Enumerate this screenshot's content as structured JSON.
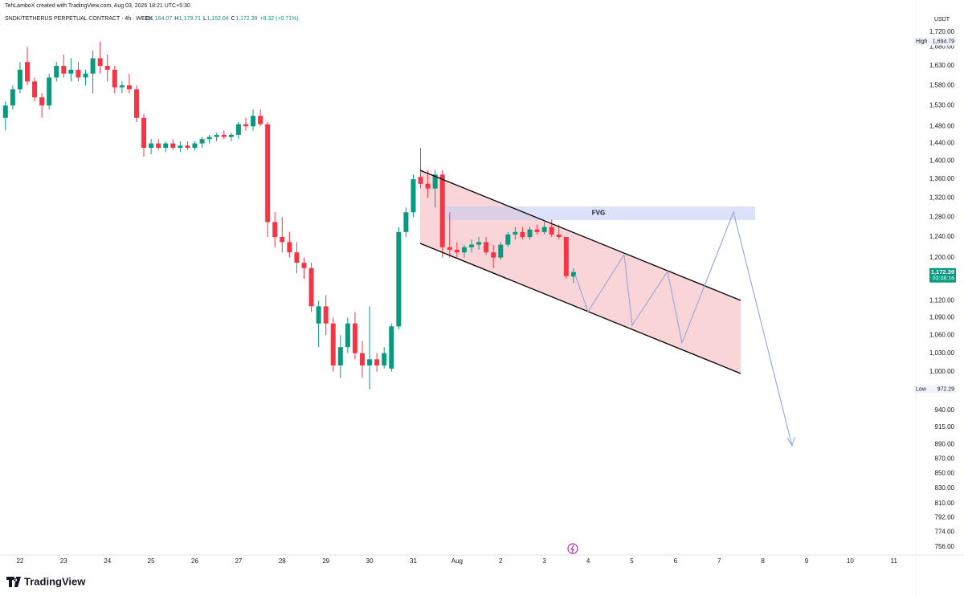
{
  "chart_data": {
    "type": "candlestick",
    "credit": "TehLamboX created with TradingView.com, Aug 03, 2026 18:21 UTC+5:30",
    "symbol": "SNDK/TETHERUS PERPETUAL CONTRACT · 4h · WEEX",
    "ohlc_legend": [
      "O",
      "1,164.07",
      "H",
      "1,179.71",
      "L",
      "1,152.04",
      "C",
      "1,172.39",
      "+8.32 (+0.71%)"
    ],
    "currency": "USDT",
    "high_label": [
      "High",
      "1,694.79"
    ],
    "low_label": [
      "Low",
      "972.29"
    ],
    "last_price": [
      "1,172.39",
      "03:08:16"
    ],
    "annotation": "FVG",
    "logo": "TradingView",
    "up_color": "#089981",
    "down_color": "#f23645",
    "log_scale": true,
    "grid": false,
    "x": [
      -8,
      -4,
      0,
      4,
      8,
      12,
      16,
      20,
      24,
      28,
      32,
      36,
      40,
      44,
      48,
      52,
      56,
      60,
      64,
      68,
      72,
      76,
      80,
      84,
      88,
      92,
      96,
      100,
      104,
      108,
      112,
      116,
      120,
      124,
      128,
      132,
      136,
      140,
      144,
      148,
      152,
      156,
      160,
      164,
      168,
      172,
      176,
      180,
      184,
      188,
      192,
      196,
      200,
      204,
      208,
      212,
      216,
      220,
      224,
      228,
      232,
      236,
      240,
      244,
      248,
      252,
      256,
      260,
      264,
      268,
      272,
      276,
      280,
      284,
      288,
      292,
      296,
      300,
      304
    ],
    "open": [
      1500,
      1530,
      1570,
      1640,
      1590,
      1550,
      1530,
      1600,
      1630,
      1610,
      1620,
      1600,
      1610,
      1650,
      1630,
      1620,
      1575,
      1580,
      1570,
      1500,
      1430,
      1440,
      1430,
      1440,
      1430,
      1435,
      1430,
      1440,
      1450,
      1455,
      1460,
      1455,
      1460,
      1485,
      1480,
      1505,
      1485,
      1270,
      1240,
      1230,
      1210,
      1190,
      1180,
      1080,
      1110,
      1080,
      1010,
      1040,
      1080,
      1030,
      1010,
      1020,
      1010,
      1005,
      1075,
      1250,
      1290,
      1365,
      1350,
      1340,
      1370,
      1220,
      1215,
      1210,
      1220,
      1225,
      1230,
      1210,
      1200,
      1225,
      1245,
      1250,
      1240,
      1255,
      1250,
      1260,
      1245,
      1240,
      1164.07
    ],
    "high": [
      1540,
      1580,
      1640,
      1680,
      1600,
      1560,
      1610,
      1640,
      1660,
      1650,
      1640,
      1620,
      1670,
      1694.79,
      1660,
      1630,
      1590,
      1610,
      1580,
      1510,
      1450,
      1450,
      1445,
      1450,
      1445,
      1445,
      1445,
      1455,
      1460,
      1465,
      1470,
      1465,
      1490,
      1500,
      1520,
      1520,
      1490,
      1290,
      1280,
      1250,
      1230,
      1200,
      1190,
      1120,
      1130,
      1090,
      1060,
      1090,
      1100,
      1050,
      1110,
      1030,
      1040,
      1080,
      1260,
      1300,
      1370,
      1430,
      1380,
      1380,
      1380,
      1290,
      1230,
      1225,
      1235,
      1240,
      1240,
      1225,
      1230,
      1250,
      1260,
      1260,
      1260,
      1265,
      1270,
      1275,
      1265,
      1240,
      1179.71
    ],
    "low": [
      1470,
      1520,
      1560,
      1580,
      1540,
      1500,
      1520,
      1590,
      1600,
      1590,
      1590,
      1580,
      1560,
      1610,
      1590,
      1560,
      1560,
      1560,
      1490,
      1410,
      1415,
      1425,
      1420,
      1425,
      1420,
      1425,
      1425,
      1430,
      1440,
      1445,
      1450,
      1445,
      1450,
      1470,
      1470,
      1480,
      1240,
      1220,
      1210,
      1200,
      1170,
      1160,
      1100,
      1040,
      1060,
      1000,
      990,
      1030,
      1020,
      990,
      972.29,
      1000,
      1005,
      1000,
      1070,
      1240,
      1280,
      1340,
      1320,
      1300,
      1200,
      1200,
      1200,
      1200,
      1210,
      1215,
      1205,
      1180,
      1195,
      1220,
      1235,
      1235,
      1235,
      1245,
      1245,
      1240,
      1235,
      1160,
      1152.04
    ],
    "close": [
      1530,
      1570,
      1620,
      1590,
      1550,
      1530,
      1600,
      1630,
      1610,
      1620,
      1600,
      1610,
      1650,
      1630,
      1620,
      1575,
      1580,
      1570,
      1500,
      1430,
      1440,
      1430,
      1440,
      1430,
      1435,
      1430,
      1440,
      1450,
      1455,
      1460,
      1455,
      1460,
      1485,
      1480,
      1505,
      1485,
      1270,
      1240,
      1230,
      1210,
      1190,
      1180,
      1110,
      1110,
      1080,
      1010,
      1040,
      1080,
      1030,
      1010,
      1020,
      1010,
      1030,
      1075,
      1250,
      1290,
      1360,
      1350,
      1340,
      1370,
      1220,
      1215,
      1210,
      1220,
      1225,
      1230,
      1210,
      1200,
      1225,
      1245,
      1250,
      1240,
      1255,
      1250,
      1260,
      1245,
      1240,
      1165,
      1172.39
    ],
    "xlim": [
      -11,
      492
    ],
    "xticks": [
      {
        "value": 0,
        "label": "22"
      },
      {
        "value": 24,
        "label": "23"
      },
      {
        "value": 48,
        "label": "24"
      },
      {
        "value": 72,
        "label": "25"
      },
      {
        "value": 96,
        "label": "26"
      },
      {
        "value": 120,
        "label": "27"
      },
      {
        "value": 144,
        "label": "28"
      },
      {
        "value": 168,
        "label": "29"
      },
      {
        "value": 192,
        "label": "30"
      },
      {
        "value": 216,
        "label": "31"
      },
      {
        "value": 240,
        "label": "Aug"
      },
      {
        "value": 264,
        "label": "2"
      },
      {
        "value": 288,
        "label": "3"
      },
      {
        "value": 312,
        "label": "4"
      },
      {
        "value": 336,
        "label": "5"
      },
      {
        "value": 360,
        "label": "6"
      },
      {
        "value": 384,
        "label": "7"
      },
      {
        "value": 408,
        "label": "8"
      },
      {
        "value": 432,
        "label": "9"
      },
      {
        "value": 456,
        "label": "10"
      },
      {
        "value": 480,
        "label": "11"
      }
    ],
    "ylim": [
      747,
      1765
    ],
    "yticks": [
      {
        "value": 1720,
        "label": "1,720.00"
      },
      {
        "value": 1680,
        "label": "1,680.00"
      },
      {
        "value": 1630,
        "label": "1,630.00"
      },
      {
        "value": 1580,
        "label": "1,580.00"
      },
      {
        "value": 1530,
        "label": "1,530.00"
      },
      {
        "value": 1480,
        "label": "1,480.00"
      },
      {
        "value": 1440,
        "label": "1,440.00"
      },
      {
        "value": 1400,
        "label": "1,400.00"
      },
      {
        "value": 1360,
        "label": "1,360.00"
      },
      {
        "value": 1320,
        "label": "1,320.00"
      },
      {
        "value": 1280,
        "label": "1,280.00"
      },
      {
        "value": 1240,
        "label": "1,240.00"
      },
      {
        "value": 1200,
        "label": "1,200.00"
      },
      {
        "value": 1120,
        "label": "1,120.00"
      },
      {
        "value": 1090,
        "label": "1,090.00"
      },
      {
        "value": 1060,
        "label": "1,060.00"
      },
      {
        "value": 1030,
        "label": "1,030.00"
      },
      {
        "value": 1000,
        "label": "1,000.00"
      },
      {
        "value": 940,
        "label": "940.00"
      },
      {
        "value": 915,
        "label": "915.00"
      },
      {
        "value": 890,
        "label": "890.00"
      },
      {
        "value": 870,
        "label": "870.00"
      },
      {
        "value": 850,
        "label": "850.00"
      },
      {
        "value": 830,
        "label": "830.00"
      },
      {
        "value": 810,
        "label": "810.00"
      },
      {
        "value": 792,
        "label": "792.00"
      },
      {
        "value": 774,
        "label": "774.00"
      },
      {
        "value": 756,
        "label": "756.00"
      }
    ]
  }
}
